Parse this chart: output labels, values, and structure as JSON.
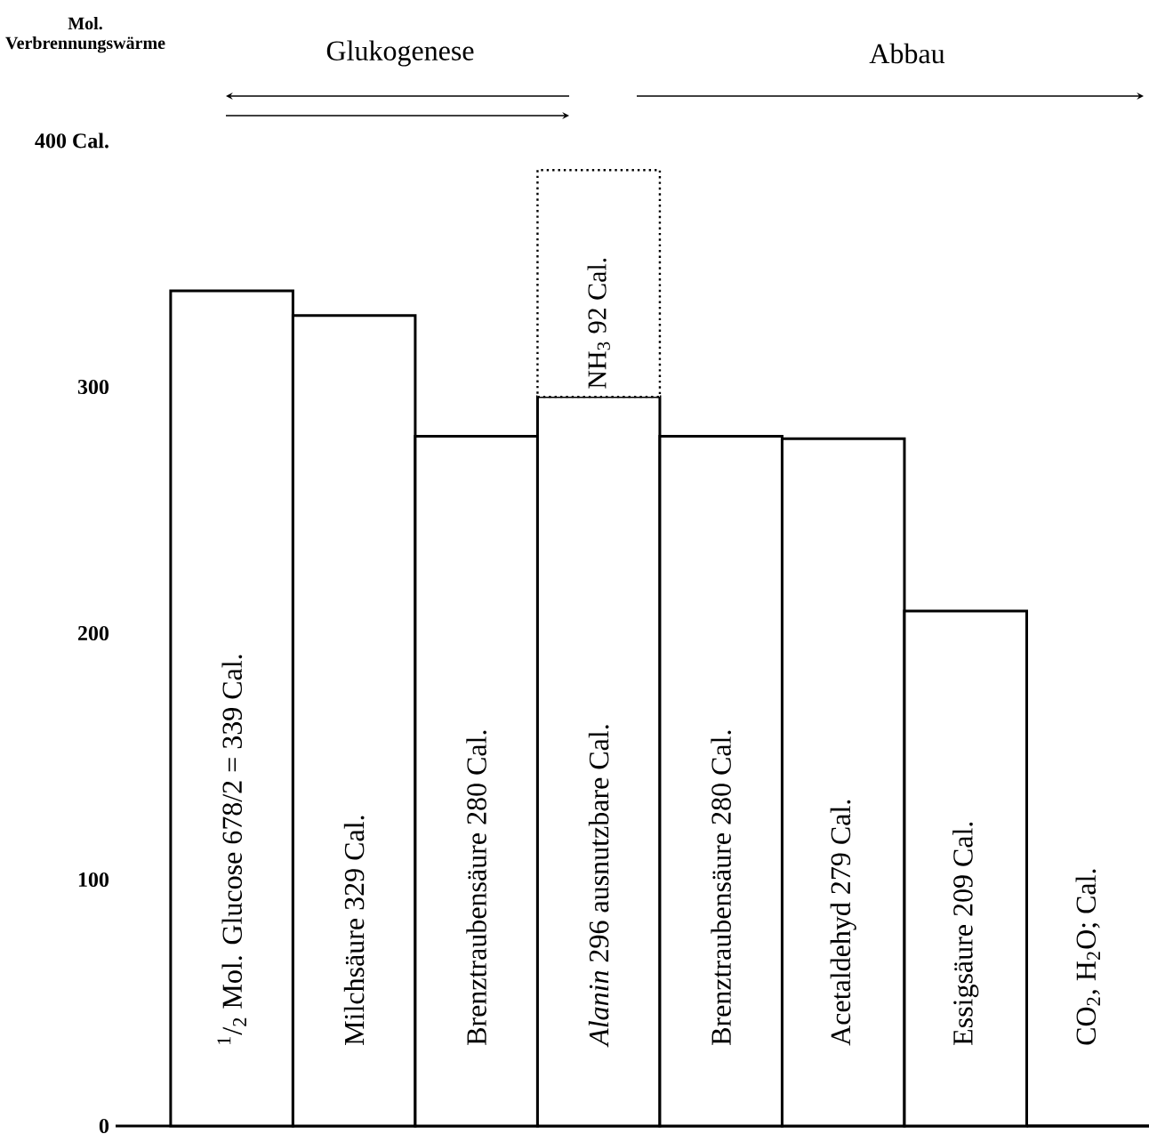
{
  "chart_data": {
    "type": "bar",
    "stacked": true,
    "ylabel": "Mol. Verbrennungswärme",
    "annotations": [
      "Glukogenese",
      "Abbau"
    ],
    "categories": [
      "$^{1}$/$_{2}$ Mol. Glucose 678/2 = 339 Cal.",
      "Milchsäure 329 Cal.",
      "Brenztraubensäure 280 Cal.",
      "*Alanin* 296 ausnutzbare Cal.",
      "Brenztraubensäure 280 Cal.",
      "Acetaldehyd 279 Cal.",
      "Essigsäure 209 Cal.",
      "CO$_{2}$, H$_{2}$O; Cal."
    ],
    "series": [
      {
        "color": "#ffffff",
        "line_style": "solid",
        "values": [
          339,
          329,
          280,
          296,
          280,
          279,
          209,
          0
        ]
      },
      {
        "name": "NH$_{3}$ 92 Cal.",
        "color": "#ffffff",
        "line_style": "dotted",
        "values": [
          null,
          null,
          null,
          92,
          null,
          null,
          null,
          null
        ]
      }
    ],
    "ylim": [
      0,
      400
    ],
    "yticks": [
      0,
      100,
      200,
      300,
      {
        "value": 400,
        "label": "400 Cal."
      }
    ],
    "legend": false
  }
}
